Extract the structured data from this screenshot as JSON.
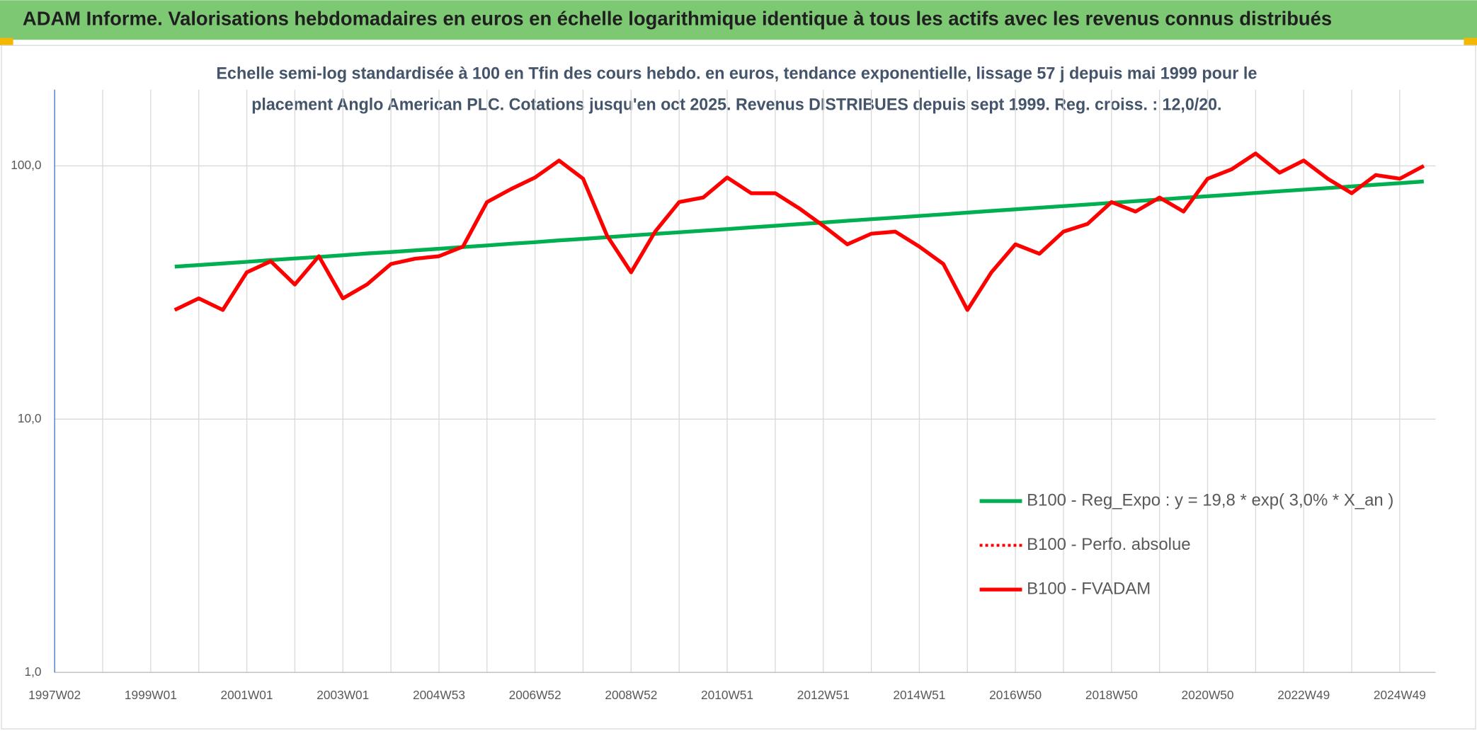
{
  "chart_data": {
    "type": "line",
    "title": "ADAM Informe. Valorisations hebdomadaires en euros en échelle logarithmique identique à tous les actifs avec les revenus connus distribués",
    "subtitle": [
      "Echelle semi-log standardisée à 100 en Tfin des cours hebdo. en euros, tendance exponentielle, lissage 57 j depuis mai 1999 pour le",
      "placement Anglo American PLC. Cotations jusqu'en oct 2025. Revenus DISTRIBUES depuis sept 1999. Reg. croiss. : 12,0/20."
    ],
    "categories": [
      "1997W02",
      null,
      null,
      null,
      "1999W01",
      null,
      null,
      null,
      "2001W01",
      null,
      null,
      null,
      "2003W01",
      null,
      null,
      null,
      "2004W53",
      null,
      null,
      null,
      "2006W52",
      null,
      null,
      null,
      "2008W52",
      null,
      null,
      null,
      "2010W51",
      null,
      null,
      null,
      "2012W51",
      null,
      null,
      null,
      "2014W51",
      null,
      null,
      null,
      "2016W50",
      null,
      null,
      null,
      "2018W50",
      null,
      null,
      null,
      "2020W50",
      null,
      null,
      null,
      "2022W49",
      null,
      null,
      null,
      "2024W49",
      null
    ],
    "log_scale": true,
    "ylim": [
      1,
      200
    ],
    "yticks": [
      {
        "value": 1,
        "label": "1,0"
      },
      {
        "value": 10,
        "label": "10,0"
      },
      {
        "value": 100,
        "label": "100,0"
      }
    ],
    "grid": true,
    "legend": "right",
    "series": [
      {
        "name": "B100 - Reg_Expo : y = 19,8 * exp( 3,0% *  X_an )",
        "color": "#00b050",
        "style": "solid",
        "values": [
          null,
          null,
          null,
          null,
          null,
          40,
          40.6,
          41.2,
          41.8,
          42.5,
          43.1,
          43.7,
          44.4,
          45.1,
          45.7,
          46.4,
          47.1,
          47.8,
          48.5,
          49.3,
          50.0,
          50.8,
          51.5,
          52.3,
          53.1,
          53.9,
          54.7,
          55.5,
          56.3,
          57.2,
          58.0,
          58.9,
          59.8,
          60.7,
          61.6,
          62.5,
          63.5,
          64.4,
          65.4,
          66.4,
          67.4,
          68.4,
          69.4,
          70.4,
          71.5,
          72.6,
          73.7,
          74.8,
          75.9,
          77.0,
          78.2,
          79.4,
          80.6,
          81.8,
          83.0,
          84.3,
          85.5,
          86.8
        ]
      },
      {
        "name": "B100 - Perfo. absolue",
        "color": "#ff0000",
        "style": "dotted",
        "values": [
          null,
          null,
          null,
          null,
          null,
          27,
          30,
          27,
          38,
          42,
          34,
          44,
          30,
          34,
          41,
          43,
          44,
          48,
          72,
          81,
          90,
          105,
          89,
          53,
          38,
          55,
          72,
          75,
          90,
          78,
          78,
          68,
          58,
          49,
          54,
          55,
          48,
          41,
          27,
          38,
          49,
          45,
          55,
          59,
          72,
          66,
          75,
          66,
          89,
          97,
          112,
          94,
          105,
          89,
          78,
          92,
          89,
          100
        ]
      },
      {
        "name": "B100 - FVADAM",
        "color": "#ff0000",
        "style": "solid",
        "values": [
          null,
          null,
          null,
          null,
          null,
          27,
          30,
          27,
          38,
          42,
          34,
          44,
          30,
          34,
          41,
          43,
          44,
          48,
          72,
          81,
          90,
          105,
          89,
          53,
          38,
          55,
          72,
          75,
          90,
          78,
          78,
          68,
          58,
          49,
          54,
          55,
          48,
          41,
          27,
          38,
          49,
          45,
          55,
          59,
          72,
          66,
          75,
          66,
          89,
          97,
          112,
          94,
          105,
          89,
          78,
          92,
          89,
          100
        ]
      }
    ]
  }
}
